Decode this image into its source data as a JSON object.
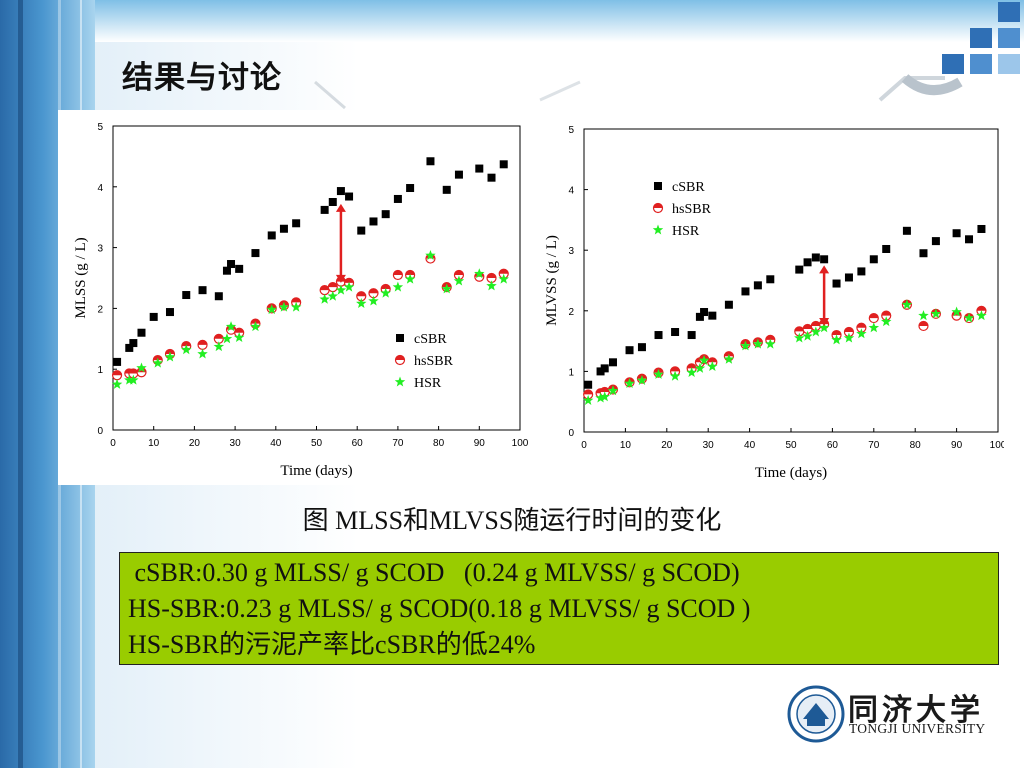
{
  "slide": {
    "title": "结果与讨论",
    "caption": "图 MLSS和MLVSS随运行时间的变化",
    "notes": [
      " cSBR:0.30 g MLSS/ g SCOD   (0.24 g MLVSS/ g SCOD)",
      "HS-SBR:0.23 g MLSS/ g SCOD(0.18 g MLVSS/ g SCOD )",
      "HS-SBR的污泥产率比cSBR的低24%"
    ],
    "note_bg_color": "#99cc00",
    "logo": {
      "name": "同济大学",
      "sub": "TONGJI UNIVERSITY"
    }
  },
  "chart_data": [
    {
      "type": "scatter",
      "xlabel": "Time (days)",
      "ylabel": "MLSS (g / L)",
      "xlim": [
        0,
        100
      ],
      "ylim": [
        0,
        5
      ],
      "xticks": [
        0,
        10,
        20,
        30,
        40,
        50,
        60,
        70,
        80,
        90,
        100
      ],
      "yticks": [
        0,
        1,
        2,
        3,
        4,
        5
      ],
      "xtick_labels": [
        "0",
        "10",
        "20",
        "30",
        "40",
        "50",
        "60",
        "70",
        "80",
        "90",
        "100"
      ],
      "ytick_labels": [
        "0",
        "1",
        "2",
        "3",
        "4",
        "5"
      ],
      "legend_position": "bottom-right",
      "annotation_arrow": {
        "x": 56,
        "y_from": 2.42,
        "y_to": 3.72,
        "color": "#e02020"
      },
      "series": [
        {
          "name": "cSBR",
          "marker": "square",
          "color": "#000000",
          "points": [
            [
              1,
              1.12
            ],
            [
              4,
              1.35
            ],
            [
              5,
              1.43
            ],
            [
              7,
              1.6
            ],
            [
              10,
              1.86
            ],
            [
              14,
              1.94
            ],
            [
              18,
              2.22
            ],
            [
              22,
              2.3
            ],
            [
              26,
              2.2
            ],
            [
              28,
              2.62
            ],
            [
              29,
              2.73
            ],
            [
              31,
              2.65
            ],
            [
              35,
              2.91
            ],
            [
              39,
              3.2
            ],
            [
              42,
              3.31
            ],
            [
              45,
              3.4
            ],
            [
              52,
              3.62
            ],
            [
              54,
              3.75
            ],
            [
              56,
              3.93
            ],
            [
              58,
              3.84
            ],
            [
              61,
              3.28
            ],
            [
              64,
              3.43
            ],
            [
              67,
              3.55
            ],
            [
              70,
              3.8
            ],
            [
              73,
              3.98
            ],
            [
              78,
              4.42
            ],
            [
              82,
              3.95
            ],
            [
              85,
              4.2
            ],
            [
              90,
              4.3
            ],
            [
              93,
              4.15
            ],
            [
              96,
              4.37
            ]
          ]
        },
        {
          "name": "hsSBR",
          "marker": "half-circle",
          "color": "#e02020",
          "points": [
            [
              1,
              0.9
            ],
            [
              4,
              0.93
            ],
            [
              5,
              0.93
            ],
            [
              7,
              0.95
            ],
            [
              11,
              1.15
            ],
            [
              14,
              1.25
            ],
            [
              18,
              1.38
            ],
            [
              22,
              1.4
            ],
            [
              26,
              1.5
            ],
            [
              29,
              1.65
            ],
            [
              31,
              1.6
            ],
            [
              35,
              1.75
            ],
            [
              39,
              2.0
            ],
            [
              42,
              2.05
            ],
            [
              45,
              2.1
            ],
            [
              52,
              2.3
            ],
            [
              54,
              2.35
            ],
            [
              56,
              2.44
            ],
            [
              58,
              2.42
            ],
            [
              61,
              2.2
            ],
            [
              64,
              2.25
            ],
            [
              67,
              2.32
            ],
            [
              70,
              2.55
            ],
            [
              73,
              2.55
            ],
            [
              78,
              2.82
            ],
            [
              82,
              2.35
            ],
            [
              85,
              2.55
            ],
            [
              90,
              2.52
            ],
            [
              93,
              2.5
            ],
            [
              96,
              2.57
            ]
          ]
        },
        {
          "name": "HSR",
          "marker": "star",
          "color": "#22ee22",
          "points": [
            [
              1,
              0.75
            ],
            [
              4,
              0.82
            ],
            [
              5,
              0.82
            ],
            [
              7,
              1.02
            ],
            [
              11,
              1.1
            ],
            [
              14,
              1.2
            ],
            [
              18,
              1.32
            ],
            [
              22,
              1.25
            ],
            [
              26,
              1.37
            ],
            [
              28,
              1.5
            ],
            [
              29,
              1.7
            ],
            [
              31,
              1.52
            ],
            [
              35,
              1.7
            ],
            [
              39,
              1.98
            ],
            [
              42,
              2.02
            ],
            [
              45,
              2.02
            ],
            [
              52,
              2.15
            ],
            [
              54,
              2.2
            ],
            [
              56,
              2.3
            ],
            [
              58,
              2.35
            ],
            [
              61,
              2.08
            ],
            [
              64,
              2.12
            ],
            [
              67,
              2.25
            ],
            [
              70,
              2.35
            ],
            [
              73,
              2.48
            ],
            [
              78,
              2.87
            ],
            [
              82,
              2.32
            ],
            [
              85,
              2.45
            ],
            [
              90,
              2.57
            ],
            [
              93,
              2.37
            ],
            [
              96,
              2.48
            ]
          ]
        }
      ]
    },
    {
      "type": "scatter",
      "xlabel": "Time (days)",
      "ylabel": "MLVSS (g / L)",
      "xlim": [
        0,
        100
      ],
      "ylim": [
        0,
        5
      ],
      "xticks": [
        0,
        10,
        20,
        30,
        40,
        50,
        60,
        70,
        80,
        90,
        100
      ],
      "yticks": [
        0,
        1,
        2,
        3,
        4,
        5
      ],
      "xtick_labels": [
        "0",
        "10",
        "20",
        "30",
        "40",
        "50",
        "60",
        "70",
        "80",
        "90",
        "100"
      ],
      "ytick_labels": [
        "0",
        "1",
        "2",
        "3",
        "4",
        "5"
      ],
      "legend_position": "top-right",
      "annotation_arrow": {
        "x": 58,
        "y_from": 1.75,
        "y_to": 2.75,
        "color": "#e02020"
      },
      "series": [
        {
          "name": "cSBR",
          "marker": "square",
          "color": "#000000",
          "points": [
            [
              1,
              0.78
            ],
            [
              4,
              1.0
            ],
            [
              5,
              1.05
            ],
            [
              7,
              1.15
            ],
            [
              11,
              1.35
            ],
            [
              14,
              1.4
            ],
            [
              18,
              1.6
            ],
            [
              22,
              1.65
            ],
            [
              26,
              1.6
            ],
            [
              28,
              1.9
            ],
            [
              29,
              1.98
            ],
            [
              31,
              1.92
            ],
            [
              35,
              2.1
            ],
            [
              39,
              2.32
            ],
            [
              42,
              2.42
            ],
            [
              45,
              2.52
            ],
            [
              52,
              2.68
            ],
            [
              54,
              2.8
            ],
            [
              56,
              2.88
            ],
            [
              58,
              2.85
            ],
            [
              61,
              2.45
            ],
            [
              64,
              2.55
            ],
            [
              67,
              2.65
            ],
            [
              70,
              2.85
            ],
            [
              73,
              3.02
            ],
            [
              78,
              3.32
            ],
            [
              82,
              2.95
            ],
            [
              85,
              3.15
            ],
            [
              90,
              3.28
            ],
            [
              93,
              3.18
            ],
            [
              96,
              3.35
            ]
          ]
        },
        {
          "name": "hsSBR",
          "marker": "half-circle",
          "color": "#e02020",
          "points": [
            [
              1,
              0.62
            ],
            [
              4,
              0.64
            ],
            [
              5,
              0.66
            ],
            [
              7,
              0.7
            ],
            [
              11,
              0.82
            ],
            [
              14,
              0.88
            ],
            [
              18,
              0.98
            ],
            [
              22,
              1.0
            ],
            [
              26,
              1.05
            ],
            [
              28,
              1.15
            ],
            [
              29,
              1.2
            ],
            [
              31,
              1.15
            ],
            [
              35,
              1.25
            ],
            [
              39,
              1.45
            ],
            [
              42,
              1.48
            ],
            [
              45,
              1.52
            ],
            [
              52,
              1.66
            ],
            [
              54,
              1.7
            ],
            [
              56,
              1.75
            ],
            [
              58,
              1.78
            ],
            [
              61,
              1.6
            ],
            [
              64,
              1.65
            ],
            [
              67,
              1.72
            ],
            [
              70,
              1.88
            ],
            [
              73,
              1.92
            ],
            [
              78,
              2.1
            ],
            [
              82,
              1.75
            ],
            [
              85,
              1.95
            ],
            [
              90,
              1.92
            ],
            [
              93,
              1.88
            ],
            [
              96,
              2.0
            ]
          ]
        },
        {
          "name": "HSR",
          "marker": "star",
          "color": "#22ee22",
          "points": [
            [
              1,
              0.52
            ],
            [
              4,
              0.56
            ],
            [
              5,
              0.58
            ],
            [
              7,
              0.68
            ],
            [
              11,
              0.8
            ],
            [
              14,
              0.85
            ],
            [
              18,
              0.95
            ],
            [
              22,
              0.92
            ],
            [
              26,
              0.98
            ],
            [
              28,
              1.05
            ],
            [
              29,
              1.18
            ],
            [
              31,
              1.08
            ],
            [
              35,
              1.2
            ],
            [
              39,
              1.42
            ],
            [
              42,
              1.45
            ],
            [
              45,
              1.45
            ],
            [
              52,
              1.55
            ],
            [
              54,
              1.58
            ],
            [
              56,
              1.65
            ],
            [
              58,
              1.72
            ],
            [
              61,
              1.52
            ],
            [
              64,
              1.55
            ],
            [
              67,
              1.62
            ],
            [
              70,
              1.72
            ],
            [
              73,
              1.82
            ],
            [
              78,
              2.1
            ],
            [
              82,
              1.92
            ],
            [
              85,
              1.95
            ],
            [
              90,
              1.98
            ],
            [
              93,
              1.88
            ],
            [
              96,
              1.92
            ]
          ]
        }
      ]
    }
  ]
}
